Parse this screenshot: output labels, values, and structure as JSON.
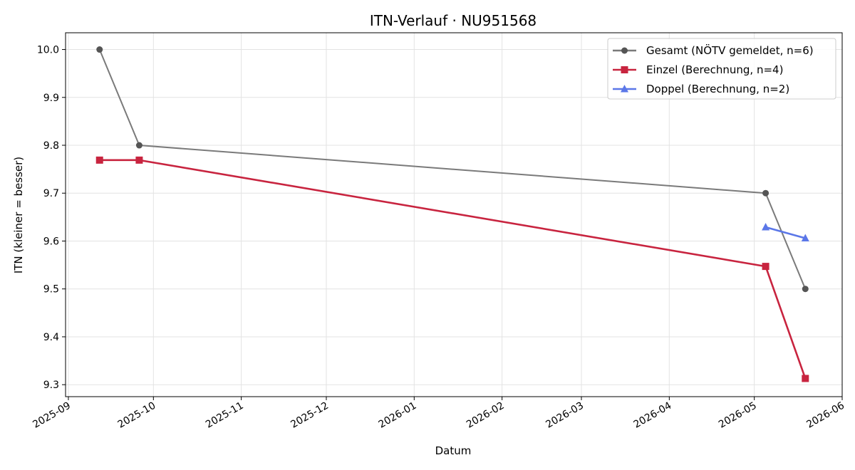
{
  "chart_data": {
    "type": "line",
    "title": "ITN-Verlauf · NU951568",
    "xlabel": "Datum",
    "ylabel": "ITN  (kleiner = besser)",
    "x_ticks": [
      "2025-09-01",
      "2025-10-01",
      "2025-11-01",
      "2025-12-01",
      "2026-01-01",
      "2026-02-01",
      "2026-03-01",
      "2026-04-01",
      "2026-05-01",
      "2026-06-01"
    ],
    "x_tick_labels": [
      "2025-09",
      "2025-10",
      "2025-11",
      "2025-12",
      "2026-01",
      "2026-02",
      "2026-03",
      "2026-04",
      "2026-05",
      "2026-06"
    ],
    "xlim": [
      "2025-08-31",
      "2026-06-01"
    ],
    "ylim": [
      9.275,
      10.035
    ],
    "y_ticks": [
      9.3,
      9.4,
      9.5,
      9.6,
      9.7,
      9.8,
      9.9,
      10.0
    ],
    "y_tick_labels": [
      "9.3",
      "9.4",
      "9.5",
      "9.6",
      "9.7",
      "9.8",
      "9.9",
      "10.0"
    ],
    "grid": true,
    "legend_position": "top-right",
    "series": [
      {
        "name": "Gesamt (NÖTV gemeldet, n=6)",
        "color": "#7a7a7a",
        "marker_color": "#555555",
        "marker": "circle",
        "points": [
          {
            "x": "2025-09-12",
            "y": 10.0
          },
          {
            "x": "2025-09-26",
            "y": 9.8
          },
          {
            "x": "2026-05-05",
            "y": 9.7
          },
          {
            "x": "2026-05-19",
            "y": 9.5
          }
        ]
      },
      {
        "name": "Einzel (Berechnung, n=4)",
        "color": "#c8243f",
        "marker_color": "#c8243f",
        "marker": "square",
        "points": [
          {
            "x": "2025-09-12",
            "y": 9.769
          },
          {
            "x": "2025-09-26",
            "y": 9.769
          },
          {
            "x": "2026-05-05",
            "y": 9.547
          },
          {
            "x": "2026-05-19",
            "y": 9.313
          }
        ]
      },
      {
        "name": "Doppel (Berechnung, n=2)",
        "color": "#5b77e8",
        "marker_color": "#5b77e8",
        "marker": "triangle",
        "points": [
          {
            "x": "2026-05-05",
            "y": 9.629
          },
          {
            "x": "2026-05-19",
            "y": 9.606
          }
        ]
      }
    ]
  }
}
